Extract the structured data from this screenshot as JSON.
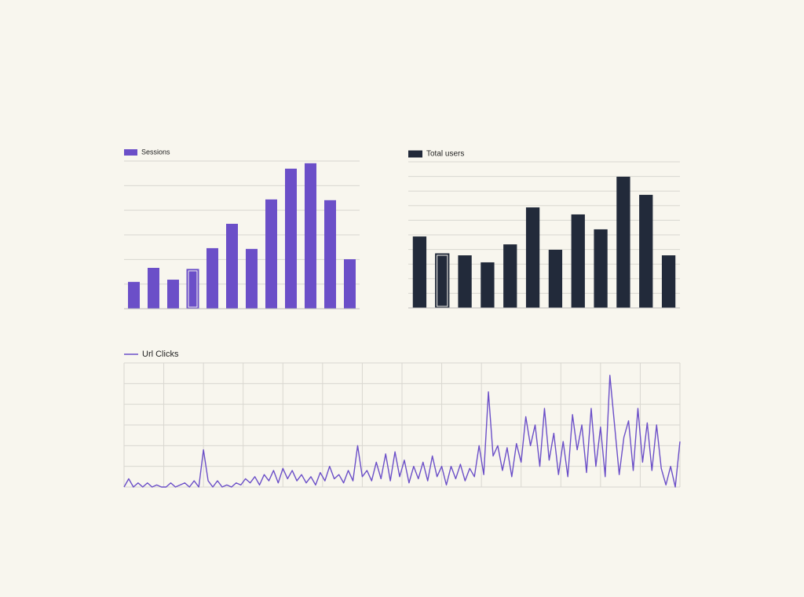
{
  "chart_data": [
    {
      "type": "bar",
      "series": [
        {
          "name": "Sessions",
          "color": "#6b4fc8",
          "values": [
            1.09,
            1.66,
            1.18,
            1.6,
            2.46,
            3.45,
            2.43,
            4.44,
            5.69,
            5.91,
            4.41,
            2.01
          ]
        }
      ],
      "ylim": [
        0,
        6
      ],
      "yticks": [
        0,
        1,
        2,
        3,
        4,
        5,
        6
      ],
      "grid": true,
      "selected_index": 3
    },
    {
      "type": "bar",
      "series": [
        {
          "name": "Total users",
          "color": "#222a3a",
          "values": [
            4.89,
            3.71,
            3.6,
            3.12,
            4.35,
            6.88,
            3.98,
            6.4,
            5.38,
            8.98,
            7.74,
            3.6
          ]
        }
      ],
      "ylim": [
        0,
        10
      ],
      "yticks": [
        0,
        1,
        2,
        3,
        4,
        5,
        6,
        7,
        8,
        9,
        10
      ],
      "grid": true,
      "selected_index": 1
    },
    {
      "type": "line",
      "series": [
        {
          "name": "Url Clicks",
          "color": "#6b4fc8",
          "values": [
            0,
            0.4,
            0,
            0.2,
            0,
            0.2,
            0,
            0.1,
            0,
            0,
            0.2,
            0,
            0.1,
            0.2,
            0,
            0.3,
            0,
            1.8,
            0.3,
            0,
            0.3,
            0,
            0.1,
            0,
            0.2,
            0.1,
            0.4,
            0.2,
            0.5,
            0.1,
            0.6,
            0.3,
            0.8,
            0.2,
            0.9,
            0.4,
            0.8,
            0.3,
            0.6,
            0.2,
            0.5,
            0.1,
            0.7,
            0.3,
            1.0,
            0.4,
            0.6,
            0.2,
            0.8,
            0.3,
            2.0,
            0.5,
            0.8,
            0.3,
            1.2,
            0.4,
            1.6,
            0.3,
            1.7,
            0.5,
            1.3,
            0.2,
            1.0,
            0.4,
            1.2,
            0.3,
            1.5,
            0.5,
            1.0,
            0.1,
            1.0,
            0.4,
            1.1,
            0.3,
            0.9,
            0.5,
            2.0,
            0.6,
            4.6,
            1.5,
            2.0,
            0.8,
            1.9,
            0.5,
            2.1,
            1.2,
            3.4,
            2.0,
            3.0,
            1.0,
            3.8,
            1.3,
            2.6,
            0.6,
            2.2,
            0.5,
            3.5,
            1.8,
            3.0,
            0.7,
            3.8,
            1.0,
            2.9,
            0.5,
            5.4,
            3.0,
            0.6,
            2.4,
            3.2,
            0.8,
            3.8,
            1.2,
            3.1,
            0.8,
            3.0,
            0.9,
            0.1,
            1.0,
            0.0,
            2.2
          ]
        }
      ],
      "ylim": [
        0,
        6
      ],
      "yticks": [
        0,
        1,
        2,
        3,
        4,
        5,
        6
      ],
      "xgrid_count": 14,
      "grid": true
    }
  ]
}
